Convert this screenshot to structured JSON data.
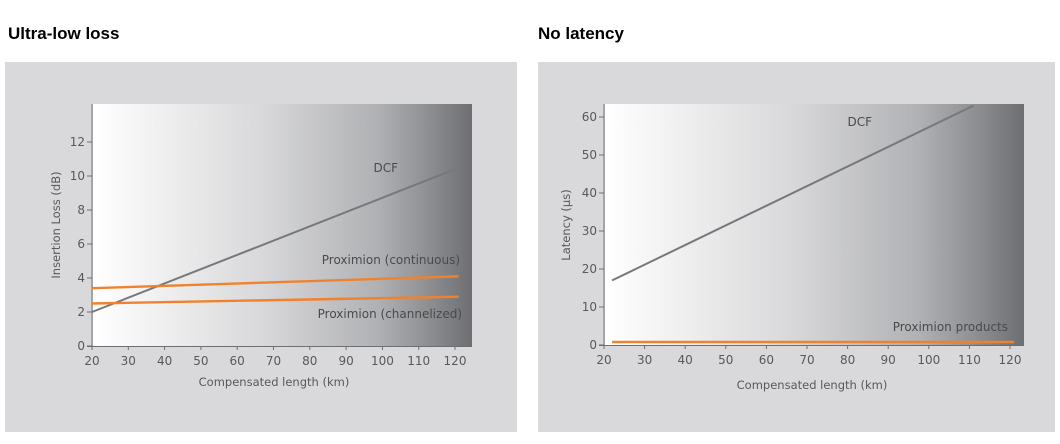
{
  "chart_data": [
    {
      "type": "line",
      "title": "Ultra-low loss",
      "xlabel": "Compensated length (km)",
      "ylabel": "Insertion Loss (dB)",
      "xlim": [
        20,
        120
      ],
      "ylim": [
        0,
        14
      ],
      "xticks": [
        20,
        30,
        40,
        50,
        60,
        70,
        80,
        90,
        100,
        110,
        120
      ],
      "xtick_labels": [
        "20",
        "30",
        "40",
        "50",
        "60",
        "70",
        "80",
        "90",
        "100",
        "110",
        "120"
      ],
      "yticks": [
        0,
        2,
        4,
        6,
        8,
        10,
        12
      ],
      "ytick_labels": [
        "0",
        "2",
        "4",
        "6",
        "8",
        "10",
        "12"
      ],
      "grid": false,
      "background": "horizontal gradient white to dark gray",
      "series": [
        {
          "name": "DCF",
          "label": "DCF",
          "color": "#77787b",
          "x": [
            20,
            120
          ],
          "y": [
            2.0,
            10.4
          ]
        },
        {
          "name": "Proximion (continuous)",
          "label": "Proximion (continuous)",
          "color": "#f0822f",
          "x": [
            20,
            121
          ],
          "y": [
            3.4,
            4.1
          ]
        },
        {
          "name": "Proximion (channelized)",
          "label": "Proximion (channelized)",
          "color": "#f0822f",
          "x": [
            20,
            121
          ],
          "y": [
            2.5,
            2.9
          ]
        }
      ]
    },
    {
      "type": "line",
      "title": "No latency",
      "xlabel": "Compensated length (km)",
      "ylabel": "Latency (µs)",
      "xlim": [
        20,
        124
      ],
      "ylim": [
        0,
        63
      ],
      "xticks": [
        20,
        30,
        40,
        50,
        60,
        70,
        80,
        90,
        100,
        110,
        120
      ],
      "xtick_labels": [
        "20",
        "30",
        "40",
        "50",
        "60",
        "70",
        "80",
        "90",
        "100",
        "110",
        "120"
      ],
      "yticks": [
        0,
        10,
        20,
        30,
        40,
        50,
        60
      ],
      "ytick_labels": [
        "0",
        "10",
        "20",
        "30",
        "40",
        "50",
        "60"
      ],
      "grid": false,
      "background": "horizontal gradient white to dark gray",
      "series": [
        {
          "name": "DCF",
          "label": "DCF",
          "color": "#77787b",
          "x": [
            22,
            111
          ],
          "y": [
            17,
            63
          ]
        },
        {
          "name": "Proximion products",
          "label": "Proximion products",
          "color": "#f0822f",
          "x": [
            22,
            121
          ],
          "y": [
            0.8,
            0.8
          ]
        }
      ]
    }
  ]
}
